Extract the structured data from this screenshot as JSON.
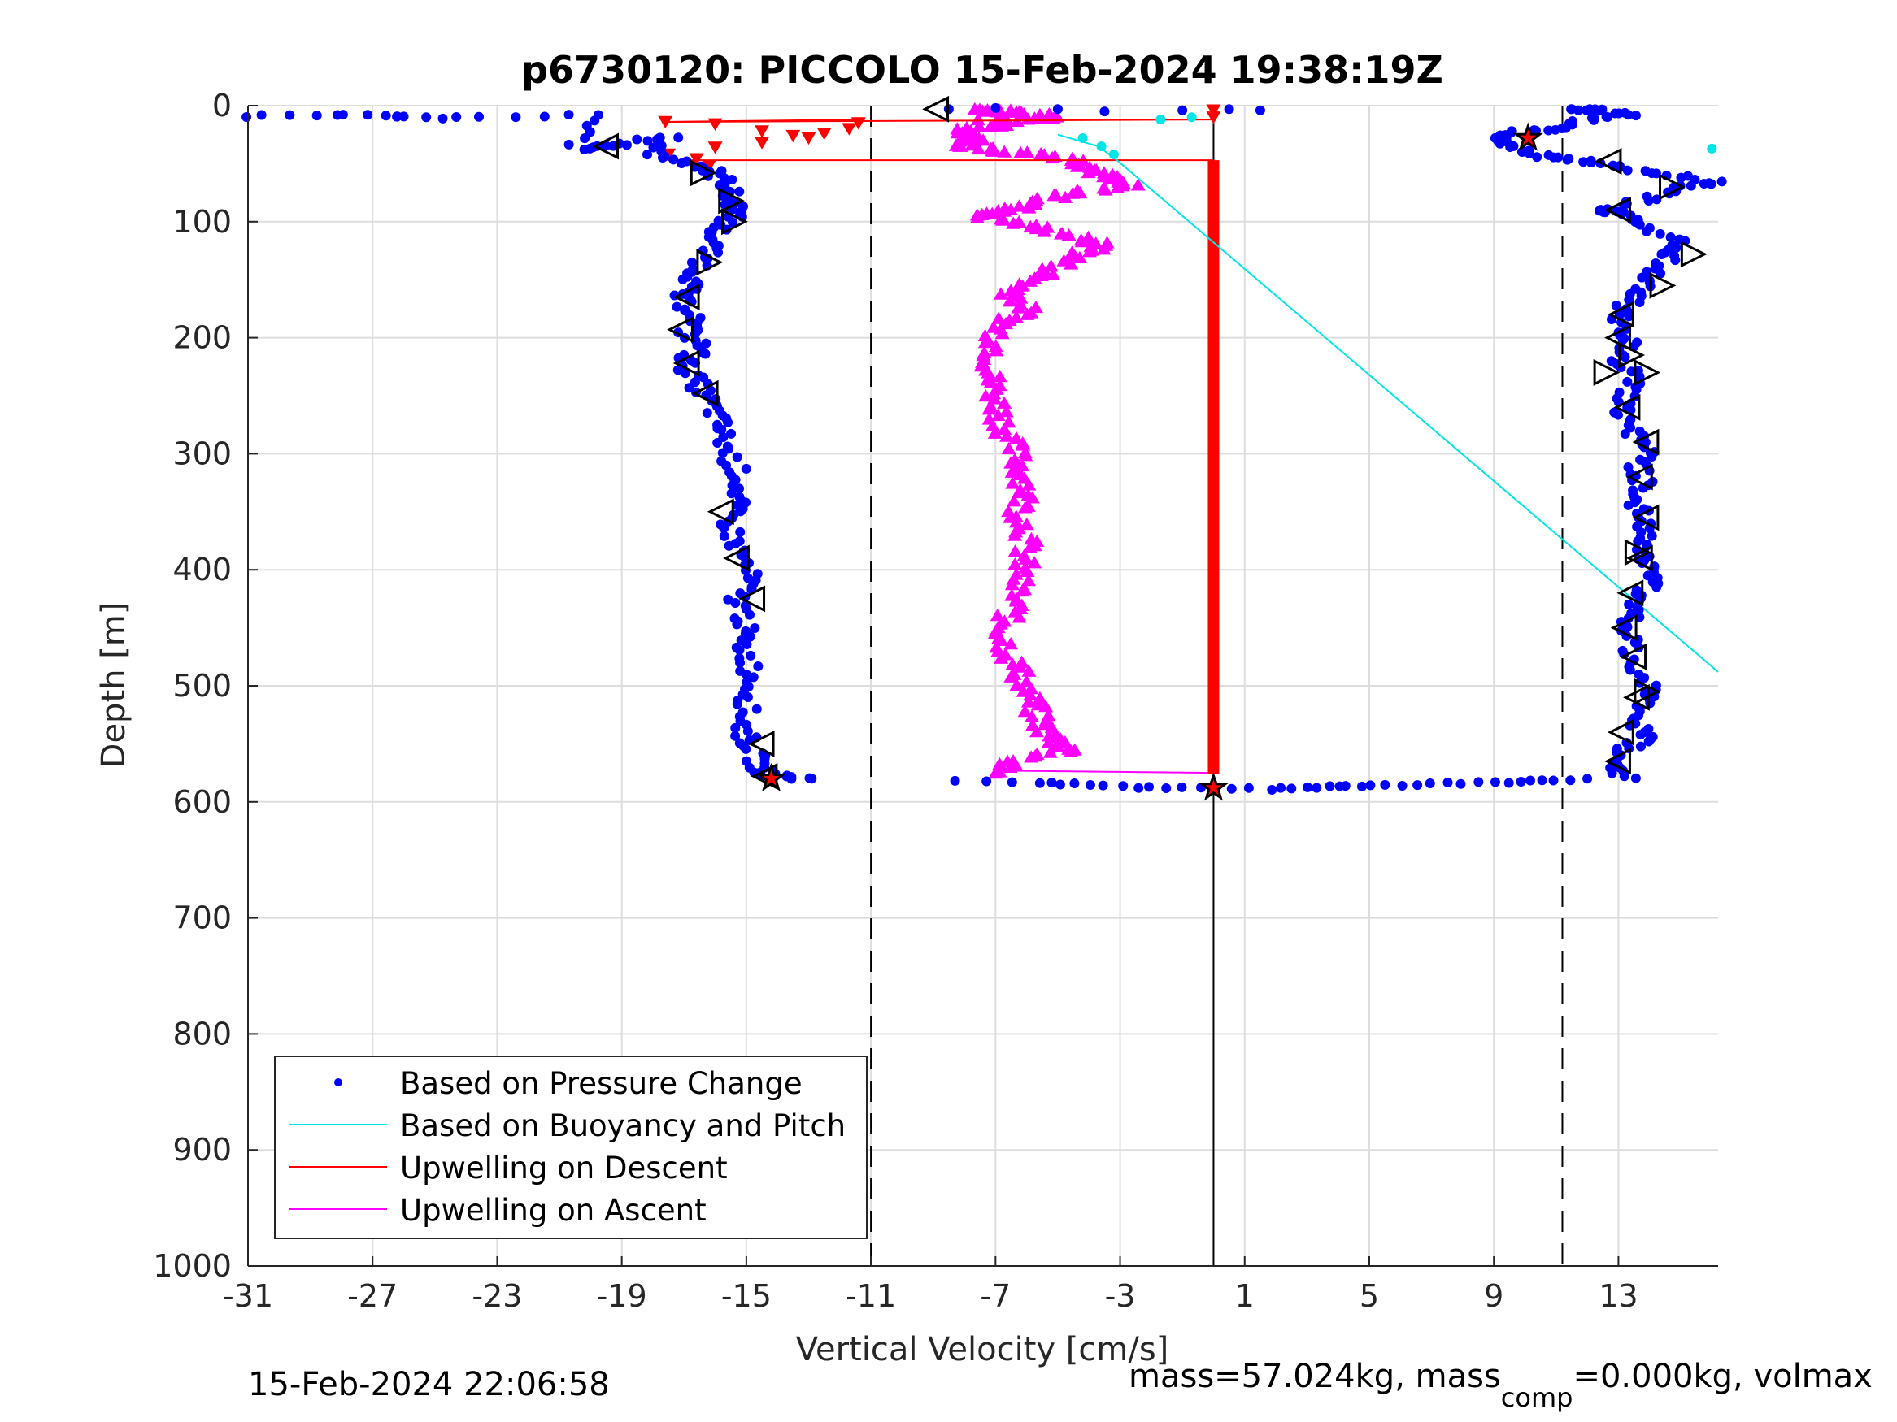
{
  "chart_data": {
    "type": "scatter",
    "title": "p6730120: PICCOLO 15-Feb-2024 19:38:19Z",
    "xlabel": "Vertical Velocity [cm/s]",
    "ylabel": "Depth [m]",
    "xlim": [
      -31,
      16.2
    ],
    "ylim": [
      0,
      1000
    ],
    "y_reversed": true,
    "grid": true,
    "x_ticks": [
      -31,
      -27,
      -23,
      -19,
      -15,
      -11,
      -7,
      -3,
      1,
      5,
      9,
      13
    ],
    "x_tick_labels": [
      "-31",
      "-27",
      "-23",
      "-19",
      "-15",
      "-11",
      "-7",
      "-3",
      "1",
      "5",
      "9",
      "13"
    ],
    "y_ticks": [
      0,
      100,
      200,
      300,
      400,
      500,
      600,
      700,
      800,
      900,
      1000
    ],
    "y_tick_labels": [
      "0",
      "100",
      "200",
      "300",
      "400",
      "500",
      "600",
      "700",
      "800",
      "900",
      "1000"
    ],
    "reference_lines": {
      "dashed_x": [
        -11,
        11.2
      ],
      "solid_x": [
        0
      ]
    },
    "legend": {
      "placement": "bottom-left",
      "entries": [
        {
          "label": "Based on Pressure Change",
          "color": "#0000ff",
          "style": "dot"
        },
        {
          "label": "Based on Buoyancy and Pitch",
          "color": "#00e5e5",
          "style": "line"
        },
        {
          "label": "Upwelling on Descent",
          "color": "#ff0000",
          "style": "line"
        },
        {
          "label": "Upwelling on Ascent",
          "color": "#ff00ff",
          "style": "line"
        }
      ]
    },
    "series": [
      {
        "name": "Based on Pressure Change",
        "color": "#0000ff",
        "marker": "dot",
        "descent_profile": [
          [
            -31,
            9
          ],
          [
            -27,
            7
          ],
          [
            -25,
            11
          ],
          [
            -20,
            8
          ],
          [
            -20.5,
            38
          ],
          [
            -19,
            33
          ],
          [
            -17.5,
            27
          ],
          [
            -18,
            42
          ],
          [
            -16.5,
            52
          ],
          [
            -16,
            58
          ],
          [
            -15.5,
            70
          ],
          [
            -15.6,
            80
          ],
          [
            -15.2,
            90
          ],
          [
            -15.7,
            100
          ],
          [
            -16,
            110
          ],
          [
            -16.2,
            125
          ],
          [
            -16.5,
            140
          ],
          [
            -16.8,
            155
          ],
          [
            -17.2,
            165
          ],
          [
            -16.6,
            180
          ],
          [
            -16.9,
            195
          ],
          [
            -16.4,
            210
          ],
          [
            -17,
            220
          ],
          [
            -16.7,
            235
          ],
          [
            -16.3,
            250
          ],
          [
            -16,
            265
          ],
          [
            -15.8,
            280
          ],
          [
            -15.6,
            300
          ],
          [
            -15.2,
            320
          ],
          [
            -15.3,
            340
          ],
          [
            -15.6,
            355
          ],
          [
            -15.4,
            375
          ],
          [
            -15.1,
            390
          ],
          [
            -14.9,
            410
          ],
          [
            -15.3,
            425
          ],
          [
            -15.0,
            445
          ],
          [
            -15.2,
            460
          ],
          [
            -14.9,
            480
          ],
          [
            -14.8,
            500
          ],
          [
            -15.0,
            520
          ],
          [
            -15.1,
            540
          ],
          [
            -14.8,
            555
          ],
          [
            -14.6,
            570
          ],
          [
            -14.2,
            578
          ],
          [
            -12.9,
            580
          ]
        ],
        "ascent_profile": [
          [
            13.4,
            580
          ],
          [
            12.8,
            570
          ],
          [
            13.3,
            555
          ],
          [
            13.8,
            545
          ],
          [
            13.6,
            530
          ],
          [
            13.9,
            515
          ],
          [
            14.0,
            500
          ],
          [
            13.5,
            480
          ],
          [
            13.3,
            460
          ],
          [
            13.2,
            445
          ],
          [
            13.6,
            430
          ],
          [
            13.9,
            415
          ],
          [
            14.1,
            400
          ],
          [
            13.8,
            385
          ],
          [
            14.0,
            370
          ],
          [
            13.7,
            355
          ],
          [
            13.5,
            340
          ],
          [
            13.8,
            325
          ],
          [
            13.6,
            310
          ],
          [
            13.9,
            295
          ],
          [
            13.4,
            280
          ],
          [
            13.1,
            265
          ],
          [
            13.3,
            250
          ],
          [
            13.6,
            235
          ],
          [
            13.1,
            220
          ],
          [
            13.3,
            205
          ],
          [
            13.0,
            190
          ],
          [
            13.2,
            175
          ],
          [
            13.6,
            160
          ],
          [
            14.1,
            145
          ],
          [
            14.6,
            130
          ],
          [
            15.0,
            120
          ],
          [
            14.0,
            105
          ],
          [
            13.0,
            93
          ],
          [
            12.6,
            90
          ],
          [
            14.0,
            80
          ],
          [
            15.0,
            70
          ],
          [
            16.0,
            65
          ],
          [
            14.0,
            58
          ],
          [
            12.5,
            50
          ],
          [
            11.0,
            45
          ],
          [
            10.0,
            40
          ],
          [
            9.3,
            30
          ],
          [
            9.6,
            22
          ],
          [
            11.0,
            20
          ],
          [
            12.0,
            12
          ],
          [
            13.5,
            8
          ],
          [
            12.3,
            4
          ],
          [
            11.5,
            3
          ]
        ],
        "bottom_turn": [
          [
            -8.2,
            582
          ],
          [
            -5.5,
            583
          ],
          [
            -4.5,
            585
          ],
          [
            -3,
            587
          ],
          [
            -1.5,
            588
          ],
          [
            0,
            589
          ],
          [
            1.8,
            589
          ],
          [
            3,
            588
          ],
          [
            4,
            587
          ],
          [
            5,
            586
          ],
          [
            6.5,
            585
          ],
          [
            8,
            584
          ],
          [
            9.5,
            583
          ],
          [
            10.5,
            582
          ],
          [
            12.0,
            580
          ]
        ],
        "surface": [
          [
            -8.5,
            3
          ],
          [
            -7.0,
            2
          ],
          [
            -5.0,
            3
          ],
          [
            -3.5,
            5
          ],
          [
            -1.0,
            4
          ],
          [
            0.5,
            3
          ],
          [
            1.5,
            4
          ]
        ]
      },
      {
        "name": "Based on Buoyancy and Pitch",
        "color": "#00e5e5",
        "marker": "line",
        "line": [
          [
            -5.0,
            25
          ],
          [
            -3.7,
            35
          ],
          [
            -3.1,
            47
          ],
          [
            16.2,
            488
          ]
        ],
        "points": [
          [
            -4.2,
            28
          ],
          [
            -3.6,
            35
          ],
          [
            -3.2,
            42
          ],
          [
            -1.7,
            12
          ],
          [
            -0.7,
            10
          ],
          [
            16.0,
            37
          ]
        ]
      },
      {
        "name": "Upwelling on Descent",
        "color": "#ff0000",
        "marker": "triangle-down",
        "points": [
          [
            -17.6,
            14
          ],
          [
            -16,
            16
          ],
          [
            -14.5,
            22
          ],
          [
            -13.5,
            26
          ],
          [
            -12.5,
            24
          ],
          [
            -11.7,
            20
          ],
          [
            -11.4,
            15
          ],
          [
            -13,
            28
          ],
          [
            -14.5,
            32
          ],
          [
            -16,
            36
          ],
          [
            -17.5,
            42
          ],
          [
            -16.6,
            46
          ],
          [
            -16.2,
            52
          ],
          [
            0,
            4
          ],
          [
            0,
            10
          ]
        ],
        "profile_x": 0,
        "profile_depth_range": [
          47,
          576
        ],
        "connectors": [
          [
            [
              -17.6,
              14
            ],
            [
              -11.2,
              12
            ]
          ],
          [
            [
              -17.5,
              47
            ],
            [
              0,
              47
            ]
          ],
          [
            [
              -17.6,
              14
            ],
            [
              0,
              12
            ]
          ]
        ]
      },
      {
        "name": "Upwelling on Ascent",
        "color": "#ff00ff",
        "marker": "triangle-up",
        "profile": [
          [
            -7.5,
            3
          ],
          [
            -6.5,
            5
          ],
          [
            -5.5,
            8
          ],
          [
            -4.8,
            10
          ],
          [
            -7.2,
            12
          ],
          [
            -6.5,
            14
          ],
          [
            -8,
            20
          ],
          [
            -7.6,
            28
          ],
          [
            -8.0,
            35
          ],
          [
            -6.5,
            40
          ],
          [
            -4.5,
            45
          ],
          [
            -4.0,
            52
          ],
          [
            -3.5,
            60
          ],
          [
            -2.8,
            68
          ],
          [
            -4.5,
            75
          ],
          [
            -5.6,
            82
          ],
          [
            -6.5,
            90
          ],
          [
            -7.5,
            95
          ],
          [
            -6.0,
            102
          ],
          [
            -4.5,
            112
          ],
          [
            -3.5,
            120
          ],
          [
            -4.5,
            130
          ],
          [
            -5.4,
            145
          ],
          [
            -6.5,
            160
          ],
          [
            -6.0,
            175
          ],
          [
            -6.9,
            190
          ],
          [
            -7.0,
            210
          ],
          [
            -7.2,
            230
          ],
          [
            -7.0,
            250
          ],
          [
            -6.8,
            270
          ],
          [
            -6.5,
            290
          ],
          [
            -6.2,
            310
          ],
          [
            -6.0,
            330
          ],
          [
            -6.2,
            350
          ],
          [
            -6.0,
            370
          ],
          [
            -6.1,
            390
          ],
          [
            -6.3,
            410
          ],
          [
            -6.4,
            430
          ],
          [
            -6.8,
            450
          ],
          [
            -6.6,
            470
          ],
          [
            -6.2,
            490
          ],
          [
            -5.9,
            510
          ],
          [
            -5.6,
            530
          ],
          [
            -5.2,
            545
          ],
          [
            -4.5,
            555
          ],
          [
            -6.5,
            565
          ],
          [
            -7.0,
            575
          ]
        ],
        "bottom_connector": [
          [
            -7.0,
            573
          ],
          [
            0,
            575
          ]
        ]
      }
    ],
    "black_markers": {
      "left_pointing": [
        [
          -8.9,
          3
        ],
        [
          -19.5,
          35
        ],
        [
          -16.9,
          165
        ],
        [
          -17.1,
          193
        ],
        [
          -16.9,
          222
        ],
        [
          -16.3,
          248
        ],
        [
          -15.8,
          350
        ],
        [
          -15.3,
          390
        ],
        [
          -14.8,
          425
        ],
        [
          -14.5,
          550
        ],
        [
          -14.4,
          578
        ],
        [
          12.7,
          48
        ],
        [
          13.0,
          90
        ],
        [
          13.1,
          180
        ],
        [
          13.0,
          200
        ],
        [
          13.3,
          260
        ],
        [
          13.9,
          290
        ],
        [
          13.7,
          320
        ],
        [
          13.9,
          355
        ],
        [
          13.7,
          390
        ],
        [
          13.4,
          420
        ],
        [
          13.2,
          450
        ],
        [
          13.5,
          475
        ],
        [
          13.6,
          510
        ],
        [
          13.1,
          540
        ],
        [
          13.0,
          565
        ]
      ],
      "right_pointing": [
        [
          -16.4,
          58
        ],
        [
          -15.5,
          82
        ],
        [
          -15.4,
          100
        ],
        [
          -16.2,
          135
        ],
        [
          13.9,
          230
        ],
        [
          14.4,
          155
        ],
        [
          15.4,
          128
        ],
        [
          13.4,
          215
        ],
        [
          12.6,
          230
        ],
        [
          14.7,
          70
        ],
        [
          13.9,
          505
        ],
        [
          13.6,
          385
        ]
      ],
      "stars": [
        [
          10.1,
          28
        ],
        [
          -14.2,
          580
        ],
        [
          0,
          588
        ]
      ]
    }
  },
  "footer": {
    "left_timestamp": "15-Feb-2024 22:06:58",
    "right_prefix": "mass=57.024kg, mass",
    "right_subscript": "comp",
    "right_suffix": "=0.000kg, volmax"
  }
}
